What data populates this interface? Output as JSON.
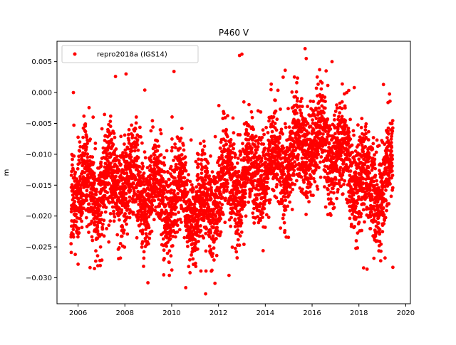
{
  "chart_data": {
    "type": "scatter",
    "title": "P460 V",
    "xlabel": "",
    "ylabel": "m",
    "xlim": [
      2005.1,
      2020.2
    ],
    "ylim": [
      -0.0342,
      0.0083
    ],
    "x_ticks": [
      2006,
      2008,
      2010,
      2012,
      2014,
      2016,
      2018,
      2020
    ],
    "x_tick_labels": [
      "2006",
      "2008",
      "2010",
      "2012",
      "2014",
      "2016",
      "2018",
      "2020"
    ],
    "y_ticks": [
      0.005,
      0.0,
      -0.005,
      -0.01,
      -0.015,
      -0.02,
      -0.025,
      -0.03
    ],
    "y_tick_labels": [
      "0.005",
      "0.000",
      "−0.005",
      "−0.010",
      "−0.015",
      "−0.020",
      "−0.025",
      "−0.030"
    ],
    "grid": false,
    "legend_position": "top-left",
    "colors": {
      "series": "#ff0000",
      "axes": "#000000",
      "background": "#ffffff"
    },
    "series": [
      {
        "name": "repro2018a (IGS14)",
        "marker": "point",
        "trend": {
          "start": 2005.7,
          "end": 2019.45,
          "baseline": [
            [
              2005.7,
              -0.015
            ],
            [
              2006.5,
              -0.016
            ],
            [
              2007.5,
              -0.015
            ],
            [
              2008.5,
              -0.015
            ],
            [
              2009.5,
              -0.017
            ],
            [
              2010.5,
              -0.017
            ],
            [
              2011.0,
              -0.019
            ],
            [
              2011.5,
              -0.0195
            ],
            [
              2012.0,
              -0.015
            ],
            [
              2013.0,
              -0.014
            ],
            [
              2014.0,
              -0.012
            ],
            [
              2015.0,
              -0.011
            ],
            [
              2016.0,
              -0.008
            ],
            [
              2017.0,
              -0.009
            ],
            [
              2018.0,
              -0.014
            ],
            [
              2018.5,
              -0.0165
            ],
            [
              2019.45,
              -0.013
            ]
          ],
          "seasonal_amplitude": 0.003,
          "scatter_sd": 0.0038
        },
        "outliers": [
          [
            2005.8,
            0.0
          ],
          [
            2006.0,
            -0.0278
          ],
          [
            2006.7,
            -0.0285
          ],
          [
            2007.6,
            0.0026
          ],
          [
            2008.05,
            0.003
          ],
          [
            2008.85,
            0.0004
          ],
          [
            2009.9,
            -0.0296
          ],
          [
            2010.1,
            0.0034
          ],
          [
            2010.6,
            -0.0316
          ],
          [
            2011.25,
            -0.0289
          ],
          [
            2011.45,
            -0.0326
          ],
          [
            2012.45,
            -0.0296
          ],
          [
            2012.9,
            0.006
          ],
          [
            2013.0,
            0.0062
          ],
          [
            2014.85,
            0.0036
          ],
          [
            2015.7,
            0.0071
          ],
          [
            2015.75,
            0.0055
          ],
          [
            2016.6,
            0.0035
          ],
          [
            2016.85,
            0.005
          ],
          [
            2017.8,
            0.0008
          ],
          [
            2018.2,
            -0.0284
          ],
          [
            2018.35,
            -0.0286
          ],
          [
            2019.05,
            0.0013
          ],
          [
            2019.45,
            -0.0283
          ]
        ]
      }
    ]
  }
}
